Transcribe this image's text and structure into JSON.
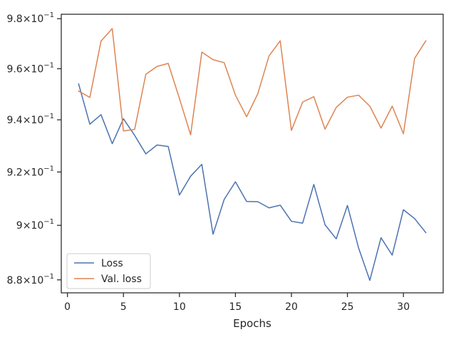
{
  "chart_data": {
    "type": "line",
    "title": "",
    "xlabel": "Epochs",
    "ylabel": "",
    "y_scale": "log",
    "xlim": [
      -0.55,
      33.55
    ],
    "ylim": [
      0.8753,
      0.9818
    ],
    "x_ticks": [
      0,
      5,
      10,
      15,
      20,
      25,
      30
    ],
    "x_tick_labels": [
      "0",
      "5",
      "10",
      "15",
      "20",
      "25",
      "30"
    ],
    "y_ticks": [
      0.88,
      0.9,
      0.92,
      0.94,
      0.96,
      0.98
    ],
    "y_tick_labels": [
      {
        "mantissa": "8.8",
        "exp": "−1"
      },
      {
        "mantissa": "9",
        "exp": "−1"
      },
      {
        "mantissa": "9.2",
        "exp": "−1"
      },
      {
        "mantissa": "9.4",
        "exp": "−1"
      },
      {
        "mantissa": "9.6",
        "exp": "−1"
      },
      {
        "mantissa": "9.8",
        "exp": "−1"
      }
    ],
    "grid": false,
    "legend_position": "lower-left",
    "x": [
      1,
      2,
      3,
      4,
      5,
      6,
      7,
      8,
      9,
      10,
      11,
      12,
      13,
      14,
      15,
      16,
      17,
      18,
      19,
      20,
      21,
      22,
      23,
      24,
      25,
      26,
      27,
      28,
      29,
      30,
      31,
      32
    ],
    "series": [
      {
        "name": "Loss",
        "color": "#4c72b0",
        "values": [
          0.954,
          0.9383,
          0.942,
          0.9308,
          0.9404,
          0.934,
          0.9269,
          0.9303,
          0.9297,
          0.9113,
          0.9184,
          0.9229,
          0.8967,
          0.9097,
          0.9163,
          0.9089,
          0.9088,
          0.9065,
          0.9075,
          0.9015,
          0.9008,
          0.9153,
          0.9002,
          0.895,
          0.9074,
          0.8916,
          0.8798,
          0.8954,
          0.889,
          0.9058,
          0.9025,
          0.8973
        ]
      },
      {
        "name": "Val. loss",
        "color": "#dd8452",
        "values": [
          0.9512,
          0.9487,
          0.971,
          0.976,
          0.9357,
          0.9363,
          0.9578,
          0.9609,
          0.9621,
          0.9483,
          0.9342,
          0.9666,
          0.9636,
          0.9624,
          0.9496,
          0.9412,
          0.9502,
          0.9651,
          0.9711,
          0.9359,
          0.9469,
          0.949,
          0.9364,
          0.9448,
          0.9488,
          0.9496,
          0.9453,
          0.9368,
          0.9453,
          0.9346,
          0.9641,
          0.9711
        ]
      }
    ]
  }
}
